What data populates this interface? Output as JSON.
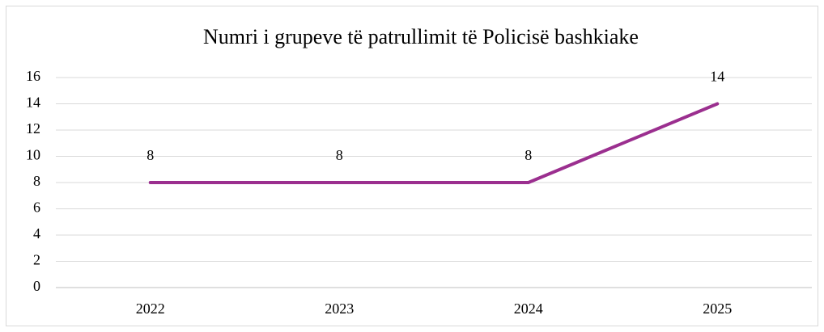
{
  "chart_data": {
    "type": "line",
    "title": "Numri i grupeve të patrullimit të Policisë bashkiake",
    "categories": [
      "2022",
      "2023",
      "2024",
      "2025"
    ],
    "values": [
      8,
      8,
      8,
      14
    ],
    "color": "#9b2f8f",
    "ylim": [
      0,
      16
    ],
    "yticks": [
      0,
      2,
      4,
      6,
      8,
      10,
      12,
      14,
      16
    ],
    "grid": true,
    "data_labels": true
  }
}
